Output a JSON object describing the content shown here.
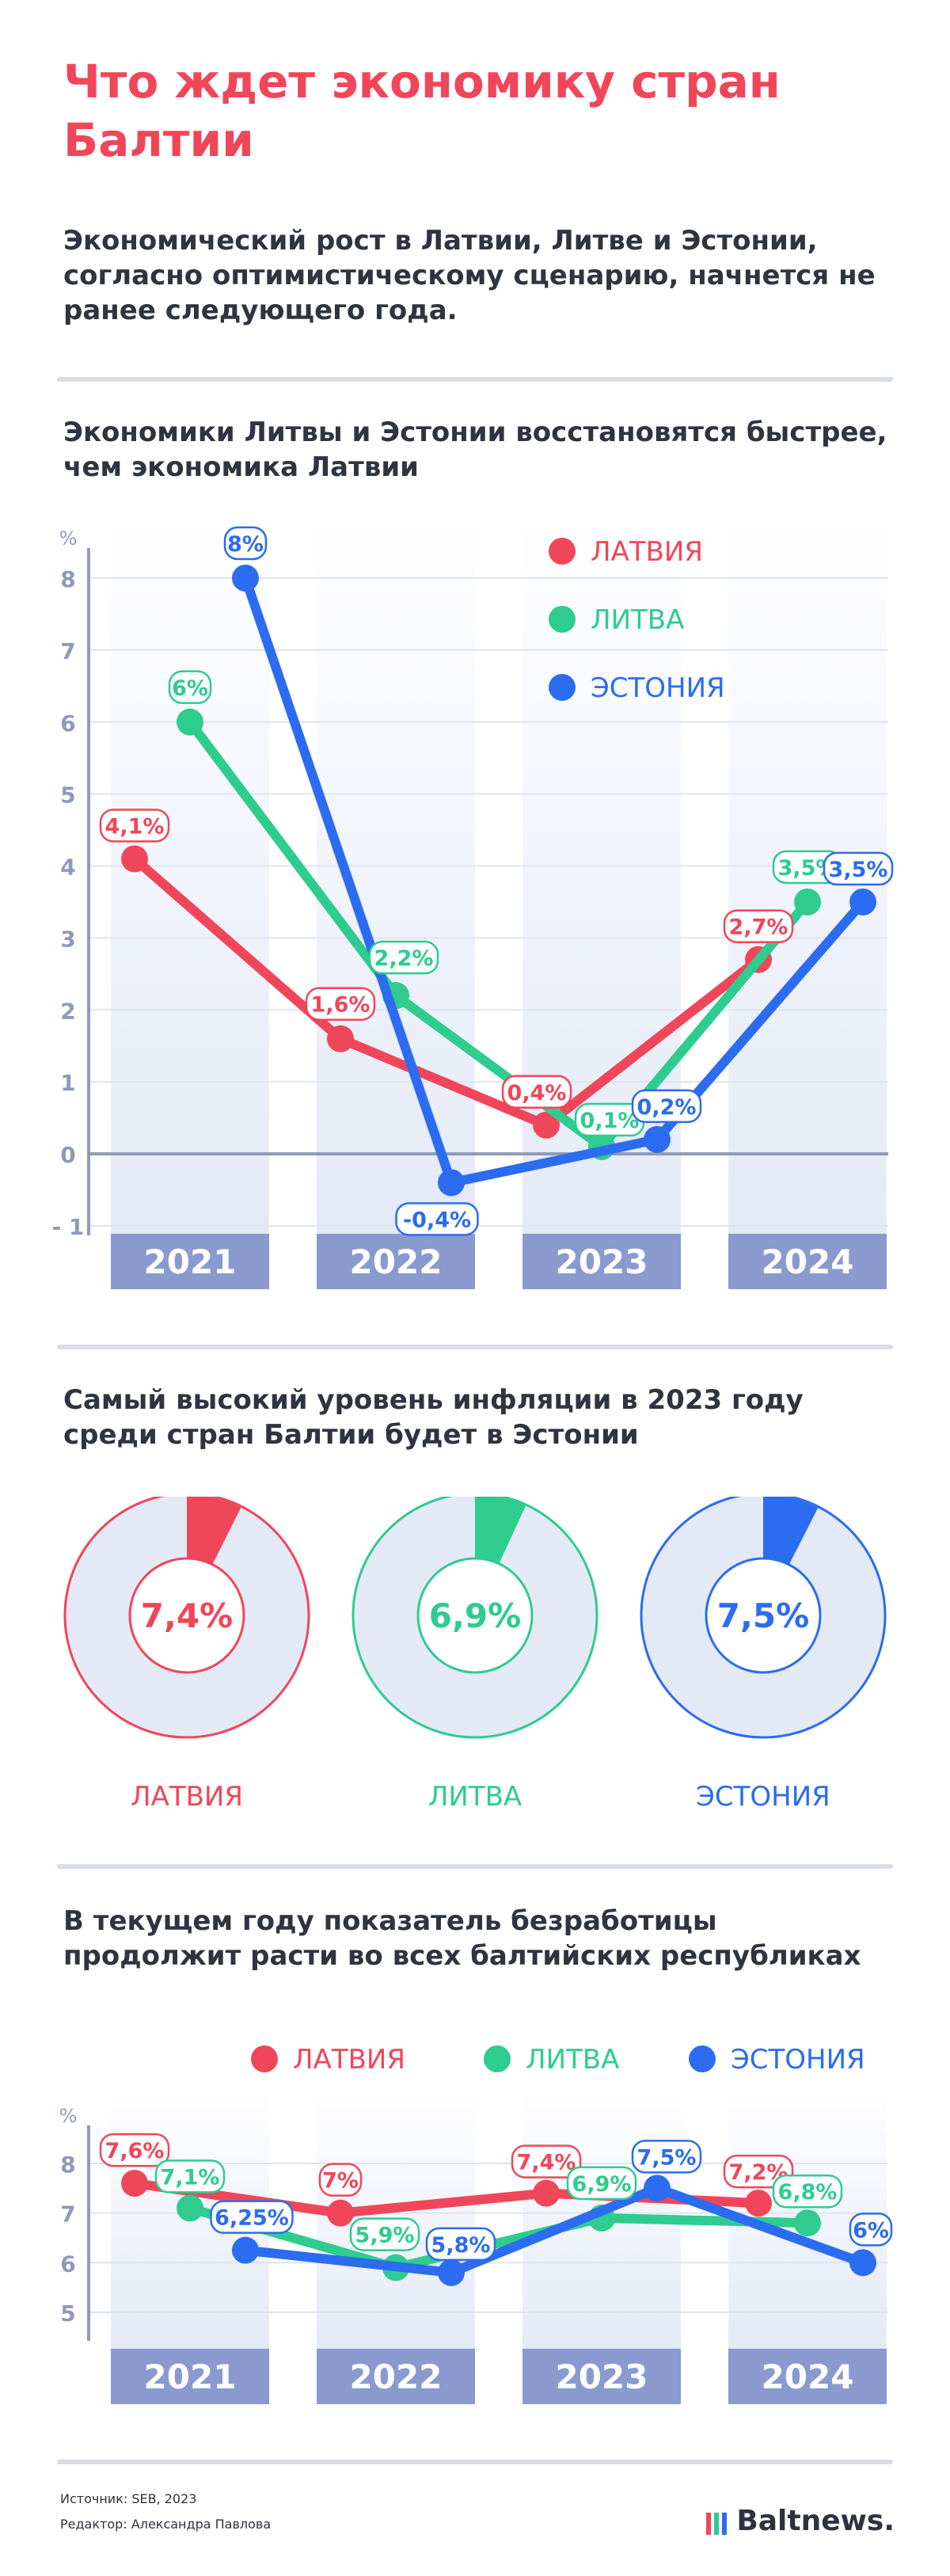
{
  "page": {
    "title": "Что ждет экономику стран Балтии",
    "lead": "Экономический рост в Латвии, Литве и Эстонии, согласно оптимистическому сценарию, начнется не ранее следующего года.",
    "source": "Источник: SEB, 2023",
    "editor": "Редактор: Александра Павлова",
    "logo": "Baltnews."
  },
  "colors": {
    "latvia": "#f0465a",
    "lithuania": "#2ecc8f",
    "estonia": "#2b6cf0",
    "axis": "#8f9ab8",
    "band": "#e4e9f6",
    "band_label": "#8a9acf"
  },
  "chart_data": [
    {
      "type": "line",
      "title": "Экономики Литвы и Эстонии восстановятся быстрее, чем экономика Латвии",
      "ylabel": "%",
      "ylim": [
        -1,
        8
      ],
      "yticks": [
        -1,
        0,
        1,
        2,
        3,
        4,
        5,
        6,
        7,
        8
      ],
      "ytick_labels": [
        "- 1",
        "0",
        "1",
        "2",
        "3",
        "4",
        "5",
        "6",
        "7",
        "8"
      ],
      "categories": [
        "2021",
        "2022",
        "2023",
        "2024"
      ],
      "legend": "top-right",
      "series": [
        {
          "name": "ЛАТВИЯ",
          "color": "#f0465a",
          "x": [
            2021,
            2022,
            2023,
            2024
          ],
          "values": [
            4.1,
            1.6,
            0.4,
            2.7
          ],
          "labels": [
            "4,1%",
            "1,6%",
            "0,4%",
            "2,7%"
          ]
        },
        {
          "name": "ЛИТВА",
          "color": "#2ecc8f",
          "x": [
            2021,
            2022,
            2023,
            2024
          ],
          "values": [
            6,
            2.2,
            0.1,
            3.5
          ],
          "labels": [
            "6%",
            "2,2%",
            "0,1%",
            "3,5%"
          ]
        },
        {
          "name": "ЭСТОНИЯ",
          "color": "#2b6cf0",
          "x": [
            2021,
            2022,
            2023,
            2024
          ],
          "values": [
            8,
            -0.4,
            0.2,
            3.5
          ],
          "labels": [
            "8%",
            "-0,4%",
            "0,2%",
            "3,5%"
          ]
        }
      ]
    },
    {
      "type": "pie",
      "title": "Самый высокий уровень инфляции в 2023 году среди стран Балтии будет в Эстонии",
      "slices": [
        {
          "name": "ЛАТВИЯ",
          "value": 7.4,
          "label": "7,4%",
          "color": "#f0465a"
        },
        {
          "name": "ЛИТВА",
          "value": 6.9,
          "label": "6,9%",
          "color": "#2ecc8f"
        },
        {
          "name": "ЭСТОНИЯ",
          "value": 7.5,
          "label": "7,5%",
          "color": "#2b6cf0"
        }
      ]
    },
    {
      "type": "line",
      "title": "В текущем году показатель безработицы продолжит расти во всех балтийских республиках",
      "ylabel": "%",
      "ylim": [
        5,
        8
      ],
      "yticks": [
        5,
        6,
        7,
        8
      ],
      "ytick_labels": [
        "5",
        "6",
        "7",
        "8"
      ],
      "categories": [
        "2021",
        "2022",
        "2023",
        "2024"
      ],
      "legend": "top",
      "series": [
        {
          "name": "ЛАТВИЯ",
          "color": "#f0465a",
          "x": [
            2021,
            2022,
            2023,
            2024
          ],
          "values": [
            7.6,
            7,
            7.4,
            7.2
          ],
          "labels": [
            "7,6%",
            "7%",
            "7,4%",
            "7,2%"
          ]
        },
        {
          "name": "ЛИТВА",
          "color": "#2ecc8f",
          "x": [
            2021,
            2022,
            2023,
            2024
          ],
          "values": [
            7.1,
            5.9,
            6.9,
            6.8
          ],
          "labels": [
            "7,1%",
            "5,9%",
            "6,9%",
            "6,8%"
          ]
        },
        {
          "name": "ЭСТОНИЯ",
          "color": "#2b6cf0",
          "x": [
            2021,
            2022,
            2023,
            2024
          ],
          "values": [
            6.25,
            5.8,
            7.5,
            6
          ],
          "labels": [
            "6,25%",
            "5,8%",
            "7,5%",
            "6%"
          ]
        }
      ]
    }
  ]
}
